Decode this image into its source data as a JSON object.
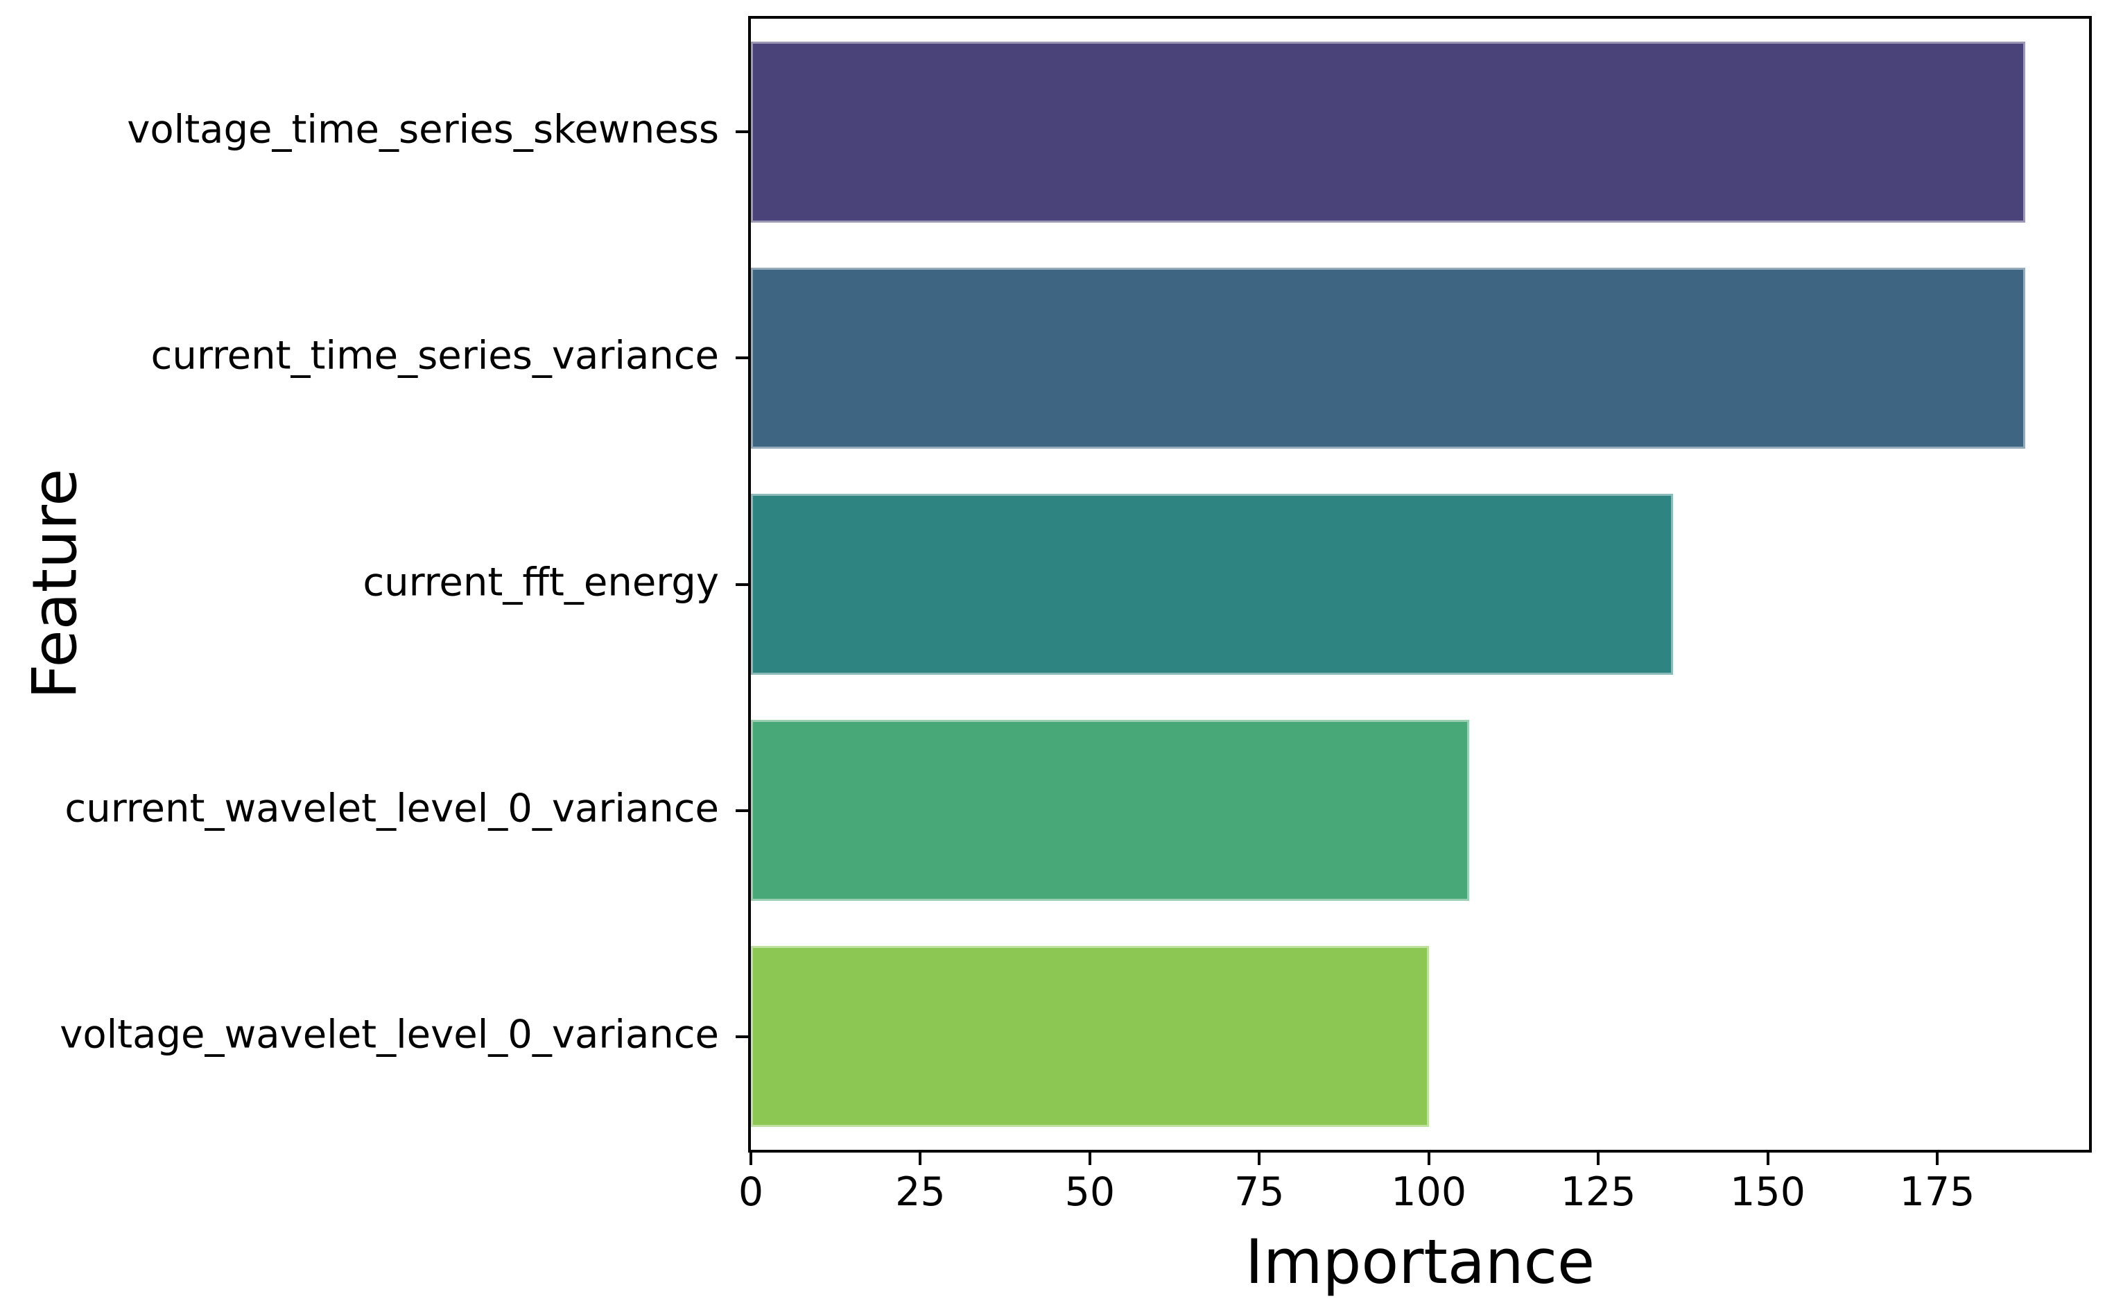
{
  "chart_data": {
    "type": "bar",
    "orientation": "horizontal",
    "title": "",
    "xlabel": "Importance",
    "ylabel": "Feature",
    "categories": [
      "voltage_time_series_skewness",
      "current_time_series_variance",
      "current_fft_energy",
      "current_wavelet_level_0_variance",
      "voltage_wavelet_level_0_variance"
    ],
    "values": [
      188,
      188,
      136,
      106,
      100
    ],
    "bar_colors": [
      "#4A4379",
      "#3E6683",
      "#2E8480",
      "#49A877",
      "#8CC653"
    ],
    "xlim": [
      0,
      197.4
    ],
    "xticks": [
      0,
      25,
      50,
      75,
      100,
      125,
      150,
      175
    ],
    "bar_fraction": 0.8,
    "grid": false,
    "legend": null
  },
  "colors": {
    "background": "#FFFFFF",
    "spine": "#000000",
    "text": "#000000"
  }
}
